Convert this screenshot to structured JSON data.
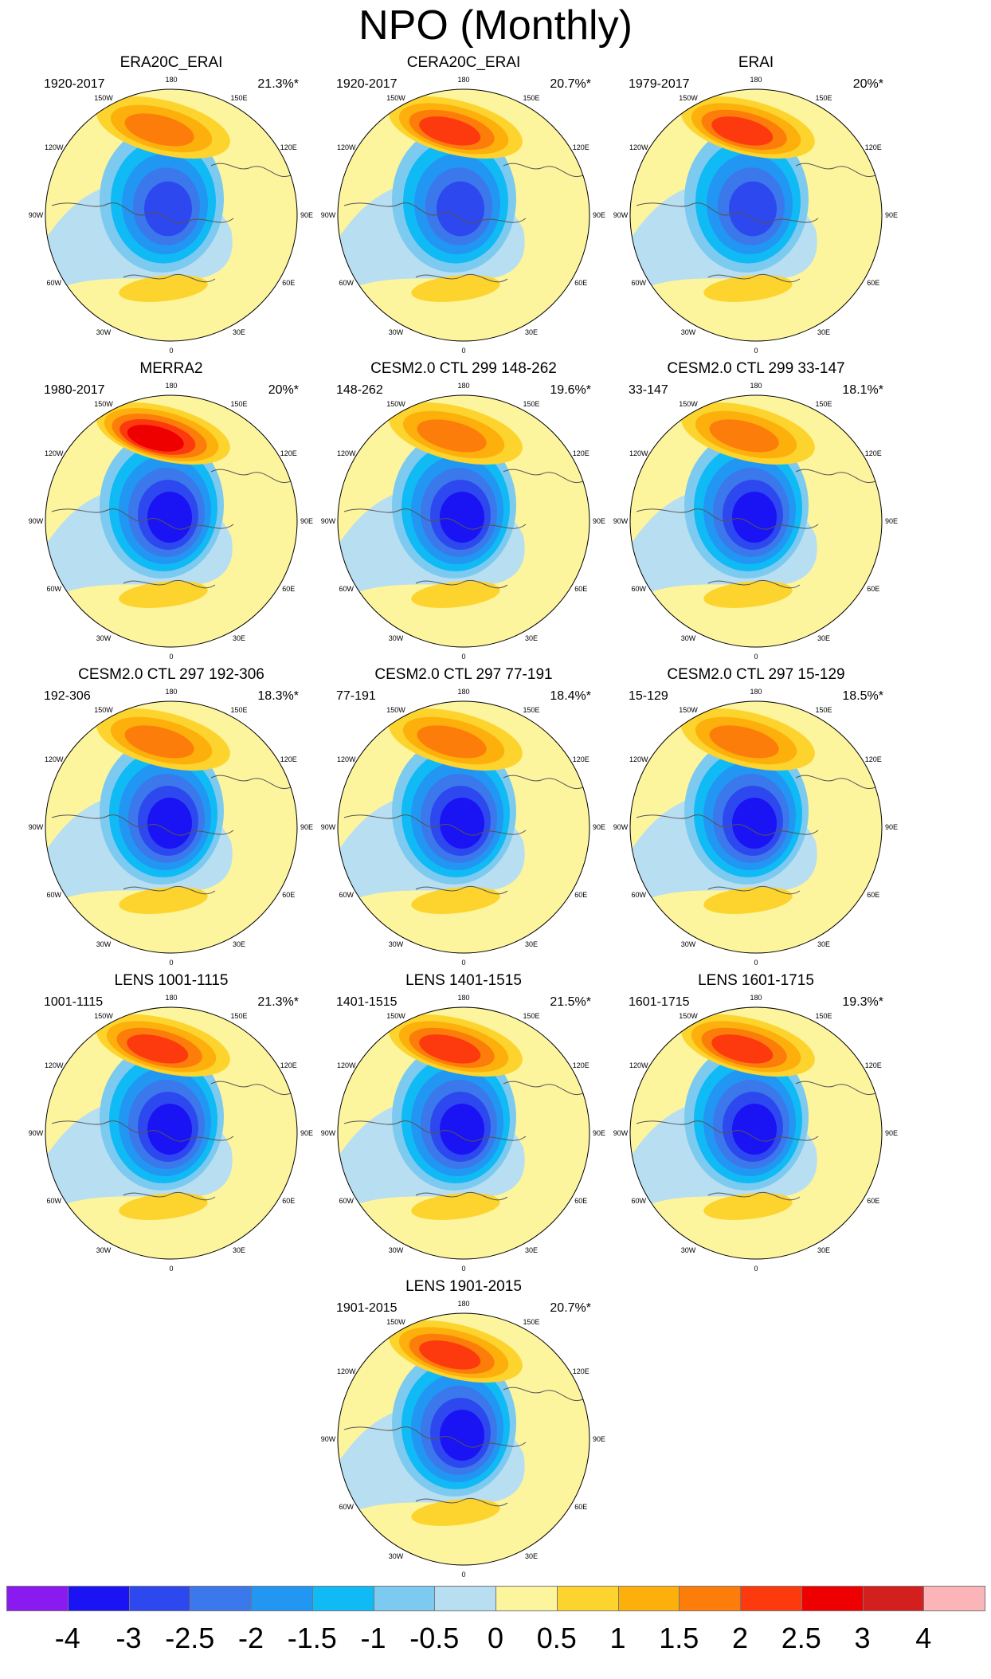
{
  "title": "NPO (Monthly)",
  "chart_data": {
    "type": "polar-contour-maps",
    "title": "NPO (Monthly)",
    "projection": "north-polar-stereographic",
    "longitude_labels": [
      "180",
      "150E",
      "120E",
      "90E",
      "60E",
      "30E",
      "0",
      "30W",
      "60W",
      "90W",
      "120W",
      "150W"
    ],
    "panels": [
      {
        "title": "ERA20C_ERAI",
        "period": "1920-2017",
        "variance": "21.3%*",
        "max_pos": 1.75,
        "min_neg": -3.0
      },
      {
        "title": "CERA20C_ERAI",
        "period": "1920-2017",
        "variance": "20.7%*",
        "max_pos": 2.25,
        "min_neg": -3.0
      },
      {
        "title": "ERAI",
        "period": "1979-2017",
        "variance": "20%*",
        "max_pos": 2.25,
        "min_neg": -3.0
      },
      {
        "title": "MERRA2",
        "period": "1980-2017",
        "variance": "20%*",
        "max_pos": 2.75,
        "min_neg": -3.5
      },
      {
        "title": "CESM2.0 CTL 299 148-262",
        "period": "148-262",
        "variance": "19.6%*",
        "max_pos": 1.75,
        "min_neg": -3.5
      },
      {
        "title": "CESM2.0 CTL 299 33-147",
        "period": "33-147",
        "variance": "18.1%*",
        "max_pos": 1.75,
        "min_neg": -3.5
      },
      {
        "title": "CESM2.0 CTL 297 192-306",
        "period": "192-306",
        "variance": "18.3%*",
        "max_pos": 1.75,
        "min_neg": -3.5
      },
      {
        "title": "CESM2.0 CTL 297 77-191",
        "period": "77-191",
        "variance": "18.4%*",
        "max_pos": 1.75,
        "min_neg": -3.5
      },
      {
        "title": "CESM2.0 CTL 297 15-129",
        "period": "15-129",
        "variance": "18.5%*",
        "max_pos": 1.75,
        "min_neg": -3.5
      },
      {
        "title": "LENS 1001-1115",
        "period": "1001-1115",
        "variance": "21.3%*",
        "max_pos": 2.25,
        "min_neg": -3.5
      },
      {
        "title": "LENS 1401-1515",
        "period": "1401-1515",
        "variance": "21.5%*",
        "max_pos": 2.25,
        "min_neg": -3.5
      },
      {
        "title": "LENS 1601-1715",
        "period": "1601-1715",
        "variance": "19.3%*",
        "max_pos": 2.25,
        "min_neg": -3.5
      },
      {
        "title": "LENS 1901-2015",
        "period": "1901-2015",
        "variance": "20.7%*",
        "max_pos": 2.25,
        "min_neg": -3.5
      }
    ],
    "colorbar": {
      "labels": [
        "-4",
        "-3",
        "-2.5",
        "-2",
        "-1.5",
        "-1",
        "-0.5",
        "0",
        "0.5",
        "1",
        "1.5",
        "2",
        "2.5",
        "3",
        "4"
      ],
      "colors": [
        "#8b1af0",
        "#1a14f5",
        "#2e48ef",
        "#3b78ec",
        "#2196f3",
        "#10baf5",
        "#7ccaf0",
        "#b8def2",
        "#fdf49e",
        "#fdd42e",
        "#fdb00c",
        "#fd7d0a",
        "#fd3a0d",
        "#ee0000",
        "#d41f1f",
        "#fbb4b8"
      ]
    }
  }
}
